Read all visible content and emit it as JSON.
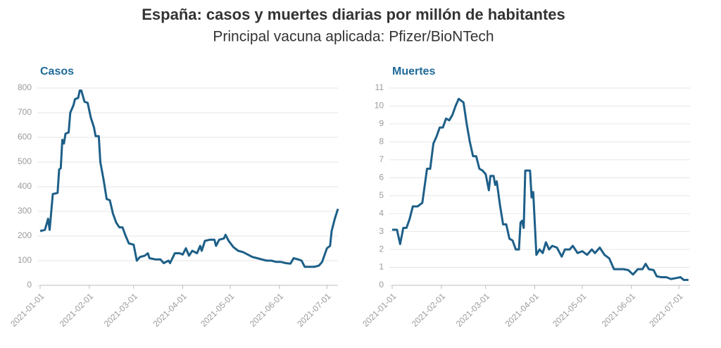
{
  "title": "España: casos y muertes diarias por millón de habitantes",
  "subtitle": "Principal vacuna aplicada: Pfizer/BioNTech",
  "chart_data": [
    {
      "type": "line",
      "title": "Casos",
      "color": "#1d5f88",
      "grid": true,
      "xlim": [
        "2021-01-01",
        "2021-07-08"
      ],
      "xticks": [
        "2021-01-01",
        "2021-02-01",
        "2021-03-01",
        "2021-04-01",
        "2021-05-01",
        "2021-06-01",
        "2021-07-01"
      ],
      "ylim": [
        0,
        800
      ],
      "yticks": [
        0,
        100,
        200,
        300,
        400,
        500,
        600,
        700,
        800
      ],
      "x": [
        "2021-01-01",
        "2021-01-04",
        "2021-01-06",
        "2021-01-07",
        "2021-01-09",
        "2021-01-12",
        "2021-01-13",
        "2021-01-14",
        "2021-01-15",
        "2021-01-16",
        "2021-01-17",
        "2021-01-19",
        "2021-01-20",
        "2021-01-22",
        "2021-01-23",
        "2021-01-25",
        "2021-01-26",
        "2021-01-27",
        "2021-01-29",
        "2021-01-31",
        "2021-02-02",
        "2021-02-04",
        "2021-02-05",
        "2021-02-07",
        "2021-02-08",
        "2021-02-10",
        "2021-02-12",
        "2021-02-14",
        "2021-02-16",
        "2021-02-18",
        "2021-02-20",
        "2021-02-22",
        "2021-02-24",
        "2021-02-26",
        "2021-03-01",
        "2021-03-03",
        "2021-03-05",
        "2021-03-08",
        "2021-03-10",
        "2021-03-11",
        "2021-03-15",
        "2021-03-18",
        "2021-03-20",
        "2021-03-23",
        "2021-03-24",
        "2021-03-27",
        "2021-03-30",
        "2021-04-01",
        "2021-04-03",
        "2021-04-05",
        "2021-04-07",
        "2021-04-10",
        "2021-04-12",
        "2021-04-13",
        "2021-04-15",
        "2021-04-18",
        "2021-04-21",
        "2021-04-22",
        "2021-04-24",
        "2021-04-27",
        "2021-04-28",
        "2021-04-30",
        "2021-05-03",
        "2021-05-06",
        "2021-05-09",
        "2021-05-12",
        "2021-05-15",
        "2021-05-18",
        "2021-05-21",
        "2021-05-24",
        "2021-05-27",
        "2021-05-30",
        "2021-06-02",
        "2021-06-05",
        "2021-06-08",
        "2021-06-10",
        "2021-06-13",
        "2021-06-15",
        "2021-06-17",
        "2021-06-20",
        "2021-06-23",
        "2021-06-26",
        "2021-06-28",
        "2021-07-01",
        "2021-07-03",
        "2021-07-04",
        "2021-07-06",
        "2021-07-08"
      ],
      "values": [
        220,
        225,
        270,
        225,
        370,
        375,
        470,
        475,
        590,
        575,
        615,
        620,
        700,
        730,
        755,
        760,
        790,
        790,
        745,
        740,
        680,
        640,
        605,
        605,
        500,
        430,
        350,
        345,
        290,
        255,
        235,
        235,
        200,
        170,
        165,
        100,
        115,
        120,
        130,
        110,
        105,
        105,
        90,
        100,
        90,
        130,
        130,
        125,
        150,
        120,
        140,
        130,
        160,
        140,
        180,
        185,
        185,
        160,
        185,
        190,
        205,
        180,
        155,
        140,
        135,
        125,
        115,
        110,
        105,
        100,
        100,
        95,
        95,
        90,
        88,
        110,
        105,
        100,
        75,
        75,
        75,
        80,
        95,
        150,
        160,
        220,
        270,
        310
      ]
    },
    {
      "type": "line",
      "title": "Muertes",
      "color": "#1d5f88",
      "grid": true,
      "xlim": [
        "2021-01-01",
        "2021-07-08"
      ],
      "xticks": [
        "2021-01-01",
        "2021-02-01",
        "2021-03-01",
        "2021-04-01",
        "2021-05-01",
        "2021-06-01",
        "2021-07-01"
      ],
      "ylim": [
        0,
        11
      ],
      "yticks": [
        0,
        1,
        2,
        3,
        4,
        5,
        6,
        7,
        8,
        9,
        10,
        11
      ],
      "x": [
        "2021-01-01",
        "2021-01-04",
        "2021-01-06",
        "2021-01-08",
        "2021-01-10",
        "2021-01-12",
        "2021-01-14",
        "2021-01-17",
        "2021-01-20",
        "2021-01-23",
        "2021-01-25",
        "2021-01-27",
        "2021-01-29",
        "2021-01-31",
        "2021-02-02",
        "2021-02-04",
        "2021-02-06",
        "2021-02-08",
        "2021-02-10",
        "2021-02-12",
        "2021-02-15",
        "2021-02-17",
        "2021-02-19",
        "2021-02-21",
        "2021-02-23",
        "2021-02-25",
        "2021-02-27",
        "2021-03-01",
        "2021-03-03",
        "2021-03-04",
        "2021-03-06",
        "2021-03-07",
        "2021-03-08",
        "2021-03-10",
        "2021-03-12",
        "2021-03-14",
        "2021-03-16",
        "2021-03-18",
        "2021-03-20",
        "2021-03-22",
        "2021-03-23",
        "2021-03-24",
        "2021-03-25",
        "2021-03-26",
        "2021-03-29",
        "2021-03-30",
        "2021-03-31",
        "2021-04-02",
        "2021-04-04",
        "2021-04-06",
        "2021-04-08",
        "2021-04-10",
        "2021-04-12",
        "2021-04-15",
        "2021-04-18",
        "2021-04-20",
        "2021-04-23",
        "2021-04-25",
        "2021-04-28",
        "2021-05-01",
        "2021-05-04",
        "2021-05-07",
        "2021-05-09",
        "2021-05-12",
        "2021-05-15",
        "2021-05-18",
        "2021-05-21",
        "2021-05-24",
        "2021-05-27",
        "2021-05-30",
        "2021-06-02",
        "2021-06-05",
        "2021-06-08",
        "2021-06-10",
        "2021-06-12",
        "2021-06-15",
        "2021-06-17",
        "2021-06-20",
        "2021-06-23",
        "2021-06-26",
        "2021-06-29",
        "2021-07-02",
        "2021-07-04",
        "2021-07-07"
      ],
      "values": [
        3.1,
        3.1,
        2.3,
        3.2,
        3.2,
        3.7,
        4.4,
        4.4,
        4.6,
        6.5,
        6.5,
        7.9,
        8.3,
        8.8,
        8.8,
        9.3,
        9.2,
        9.5,
        10.0,
        10.4,
        10.2,
        9.0,
        8.0,
        7.2,
        7.2,
        6.5,
        6.4,
        6.2,
        5.3,
        6.1,
        6.1,
        5.6,
        5.8,
        4.5,
        3.4,
        3.4,
        2.6,
        2.5,
        2.0,
        2.0,
        3.5,
        3.6,
        3.2,
        6.4,
        6.4,
        4.9,
        5.2,
        1.7,
        2.0,
        1.8,
        2.4,
        2.0,
        2.2,
        2.1,
        1.6,
        2.0,
        2.0,
        2.2,
        1.8,
        1.9,
        1.7,
        2.0,
        1.8,
        2.1,
        1.7,
        1.5,
        0.9,
        0.9,
        0.9,
        0.85,
        0.6,
        0.9,
        0.9,
        1.2,
        0.9,
        0.85,
        0.5,
        0.45,
        0.45,
        0.35,
        0.4,
        0.45,
        0.3,
        0.3
      ]
    }
  ]
}
